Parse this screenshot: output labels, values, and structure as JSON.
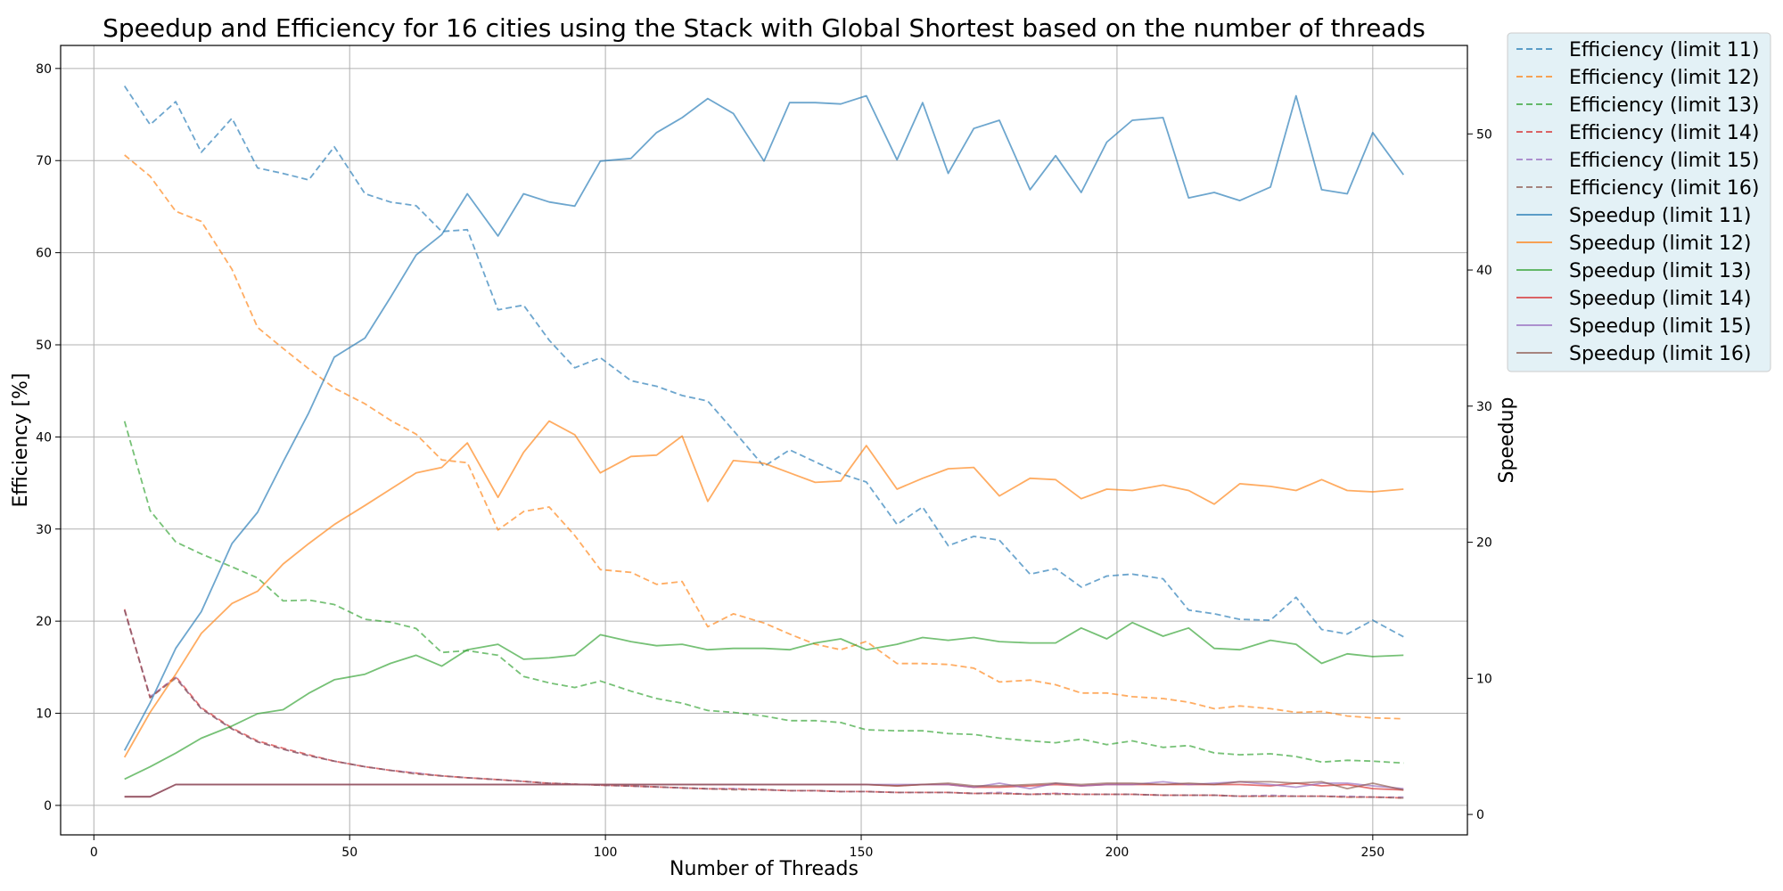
{
  "chart_data": {
    "type": "line",
    "title": "Speedup and Efficiency for 16 cities using the Stack with Global Shortest based on the number of threads",
    "xlabel": "Number of Threads",
    "ylabel_left": "Efficiency [%]",
    "ylabel_right": "Speedup",
    "xlim": [
      -6.5,
      268.5
    ],
    "ylim_left": [
      -3.2,
      82.5
    ],
    "ylim_right": [
      -1.5,
      56.5
    ],
    "xticks": [
      0,
      50,
      100,
      150,
      200,
      250
    ],
    "yticks_left": [
      0,
      10,
      20,
      30,
      40,
      50,
      60,
      70,
      80
    ],
    "yticks_right": [
      0,
      10,
      20,
      30,
      40,
      50
    ],
    "grid": true,
    "legend_position": "outside-top-right",
    "x": [
      6,
      11,
      16,
      21,
      27,
      32,
      37,
      42,
      47,
      53,
      58,
      63,
      68,
      73,
      79,
      84,
      89,
      94,
      99,
      105,
      110,
      115,
      120,
      125,
      131,
      136,
      141,
      146,
      151,
      157,
      162,
      167,
      172,
      177,
      183,
      188,
      193,
      198,
      203,
      209,
      214,
      219,
      224,
      230,
      235,
      240,
      245,
      250,
      256
    ],
    "series": [
      {
        "name": "Efficiency (limit 11)",
        "axis": "left",
        "style": "dashed",
        "color": "#1f77b4",
        "values": [
          78.1,
          73.9,
          76.4,
          70.9,
          74.6,
          69.2,
          68.6,
          67.9,
          71.5,
          66.4,
          65.5,
          65.1,
          62.3,
          62.5,
          53.8,
          54.3,
          50.5,
          47.5,
          48.6,
          46.1,
          45.5,
          44.5,
          43.9,
          40.7,
          36.8,
          38.6,
          37.3,
          36.0,
          35.1,
          30.5,
          32.4,
          28.2,
          29.2,
          28.8,
          25.1,
          25.7,
          23.7,
          24.9,
          25.1,
          24.6,
          21.2,
          20.8,
          20.2,
          20.1,
          22.6,
          19.1,
          18.6,
          20.1,
          18.3
        ]
      },
      {
        "name": "Efficiency (limit 12)",
        "axis": "left",
        "style": "dashed",
        "color": "#ff7f0e",
        "values": [
          70.6,
          68.3,
          64.5,
          63.4,
          58.2,
          51.9,
          49.6,
          47.4,
          45.3,
          43.6,
          41.8,
          40.3,
          37.5,
          37.2,
          29.9,
          31.9,
          32.4,
          29.3,
          25.6,
          25.3,
          24.0,
          24.3,
          19.4,
          20.8,
          19.8,
          18.6,
          17.5,
          16.9,
          17.8,
          15.4,
          15.4,
          15.3,
          14.9,
          13.4,
          13.6,
          13.1,
          12.2,
          12.2,
          11.8,
          11.6,
          11.2,
          10.5,
          10.8,
          10.5,
          10.1,
          10.2,
          9.7,
          9.5,
          9.4
        ]
      },
      {
        "name": "Efficiency (limit 13)",
        "axis": "left",
        "style": "dashed",
        "color": "#2ca02c",
        "values": [
          41.7,
          32.0,
          28.6,
          27.3,
          25.9,
          24.7,
          22.2,
          22.3,
          21.8,
          20.2,
          19.9,
          19.2,
          16.6,
          16.8,
          16.3,
          14.0,
          13.3,
          12.8,
          13.5,
          12.4,
          11.6,
          11.1,
          10.3,
          10.1,
          9.7,
          9.2,
          9.2,
          9.0,
          8.2,
          8.1,
          8.1,
          7.8,
          7.7,
          7.3,
          7.0,
          6.8,
          7.2,
          6.6,
          7.0,
          6.3,
          6.5,
          5.7,
          5.5,
          5.6,
          5.3,
          4.7,
          4.9,
          4.8,
          4.6
        ]
      },
      {
        "name": "Efficiency (limit 14)",
        "axis": "left",
        "style": "dashed",
        "color": "#d62728",
        "values": [
          21.3,
          11.7,
          14.0,
          10.6,
          8.4,
          7.0,
          6.2,
          5.5,
          4.8,
          4.2,
          3.8,
          3.5,
          3.2,
          3.0,
          2.8,
          2.6,
          2.4,
          2.3,
          2.2,
          2.1,
          2.0,
          1.9,
          1.8,
          1.8,
          1.7,
          1.6,
          1.6,
          1.5,
          1.5,
          1.4,
          1.4,
          1.4,
          1.3,
          1.3,
          1.2,
          1.3,
          1.2,
          1.2,
          1.2,
          1.1,
          1.1,
          1.1,
          1.0,
          1.0,
          1.0,
          1.0,
          0.9,
          0.9,
          0.8
        ]
      },
      {
        "name": "Efficiency (limit 15)",
        "axis": "left",
        "style": "dashed",
        "color": "#9467bd",
        "values": [
          21.2,
          11.8,
          13.9,
          10.5,
          8.3,
          6.9,
          6.1,
          5.4,
          4.8,
          4.2,
          3.8,
          3.5,
          3.2,
          3.0,
          2.8,
          2.6,
          2.4,
          2.3,
          2.2,
          2.1,
          2.0,
          1.9,
          1.8,
          1.8,
          1.7,
          1.6,
          1.6,
          1.5,
          1.5,
          1.4,
          1.4,
          1.4,
          1.3,
          1.4,
          1.2,
          1.3,
          1.2,
          1.2,
          1.2,
          1.1,
          1.1,
          1.1,
          1.0,
          1.1,
          1.0,
          1.0,
          1.0,
          0.9,
          0.9
        ]
      },
      {
        "name": "Efficiency (limit 16)",
        "axis": "left",
        "style": "dashed",
        "color": "#8c564b",
        "values": [
          21.2,
          11.7,
          13.8,
          10.5,
          8.3,
          6.9,
          6.1,
          5.4,
          4.8,
          4.2,
          3.8,
          3.4,
          3.2,
          3.0,
          2.8,
          2.6,
          2.4,
          2.3,
          2.2,
          2.1,
          2.0,
          1.9,
          1.8,
          1.7,
          1.7,
          1.6,
          1.6,
          1.5,
          1.5,
          1.4,
          1.4,
          1.4,
          1.3,
          1.3,
          1.2,
          1.2,
          1.2,
          1.2,
          1.2,
          1.1,
          1.1,
          1.1,
          1.0,
          1.0,
          1.0,
          1.0,
          0.9,
          0.9,
          0.8
        ]
      },
      {
        "name": "Speedup (limit 11)",
        "axis": "right",
        "style": "solid",
        "color": "#1f77b4",
        "values": [
          4.7,
          8.2,
          12.2,
          14.9,
          19.9,
          22.2,
          25.9,
          29.5,
          33.6,
          35.0,
          38.0,
          41.1,
          42.6,
          45.6,
          42.5,
          45.6,
          45.0,
          44.7,
          48.0,
          48.2,
          50.1,
          51.2,
          52.6,
          51.5,
          48.0,
          52.3,
          52.3,
          52.2,
          52.8,
          48.1,
          52.3,
          47.1,
          50.4,
          51.0,
          45.9,
          48.4,
          45.7,
          49.4,
          51.0,
          51.2,
          45.3,
          45.7,
          45.1,
          46.1,
          52.8,
          45.9,
          45.6,
          50.1,
          47.0
        ]
      },
      {
        "name": "Speedup (limit 12)",
        "axis": "right",
        "style": "solid",
        "color": "#ff7f0e",
        "values": [
          4.2,
          7.5,
          10.3,
          13.3,
          15.5,
          16.4,
          18.4,
          19.9,
          21.3,
          22.7,
          23.9,
          25.1,
          25.5,
          27.3,
          23.3,
          26.6,
          28.9,
          27.9,
          25.1,
          26.3,
          26.4,
          27.8,
          23.0,
          26.0,
          25.8,
          25.1,
          24.4,
          24.5,
          27.1,
          23.9,
          24.7,
          25.4,
          25.5,
          23.4,
          24.7,
          24.6,
          23.2,
          23.9,
          23.8,
          24.2,
          23.8,
          22.8,
          24.3,
          24.1,
          23.8,
          24.6,
          23.8,
          23.7,
          23.9
        ]
      },
      {
        "name": "Speedup (limit 13)",
        "axis": "right",
        "style": "solid",
        "color": "#2ca02c",
        "values": [
          2.6,
          3.5,
          4.5,
          5.6,
          6.5,
          7.4,
          7.7,
          8.9,
          9.9,
          10.3,
          11.1,
          11.7,
          10.9,
          12.1,
          12.5,
          11.4,
          11.5,
          11.7,
          13.2,
          12.7,
          12.4,
          12.5,
          12.1,
          12.2,
          12.2,
          12.1,
          12.6,
          12.9,
          12.1,
          12.5,
          13.0,
          12.8,
          13.0,
          12.7,
          12.6,
          12.6,
          13.7,
          12.9,
          14.1,
          13.1,
          13.7,
          12.2,
          12.1,
          12.8,
          12.5,
          11.1,
          11.8,
          11.6,
          11.7
        ]
      },
      {
        "name": "Speedup (limit 14)",
        "axis": "right",
        "style": "solid",
        "color": "#d62728",
        "values": [
          1.3,
          1.3,
          2.2,
          2.2,
          2.2,
          2.2,
          2.2,
          2.2,
          2.2,
          2.2,
          2.2,
          2.2,
          2.2,
          2.2,
          2.2,
          2.2,
          2.2,
          2.2,
          2.2,
          2.2,
          2.2,
          2.2,
          2.2,
          2.2,
          2.2,
          2.2,
          2.2,
          2.2,
          2.2,
          2.1,
          2.2,
          2.2,
          2.0,
          2.0,
          2.1,
          2.2,
          2.1,
          2.2,
          2.2,
          2.2,
          2.2,
          2.2,
          2.2,
          2.1,
          2.3,
          2.1,
          2.2,
          1.9,
          1.8
        ]
      },
      {
        "name": "Speedup (limit 15)",
        "axis": "right",
        "style": "solid",
        "color": "#9467bd",
        "values": [
          1.3,
          1.3,
          2.2,
          2.2,
          2.2,
          2.2,
          2.2,
          2.2,
          2.2,
          2.2,
          2.2,
          2.2,
          2.2,
          2.2,
          2.2,
          2.2,
          2.2,
          2.2,
          2.2,
          2.2,
          2.2,
          2.2,
          2.2,
          2.2,
          2.2,
          2.2,
          2.2,
          2.2,
          2.2,
          2.2,
          2.2,
          2.2,
          2.0,
          2.3,
          1.9,
          2.3,
          2.1,
          2.2,
          2.2,
          2.4,
          2.2,
          2.3,
          2.4,
          2.2,
          2.0,
          2.3,
          2.3,
          2.1,
          1.9
        ]
      },
      {
        "name": "Speedup (limit 16)",
        "axis": "right",
        "style": "solid",
        "color": "#8c564b",
        "values": [
          1.3,
          1.3,
          2.2,
          2.2,
          2.2,
          2.2,
          2.2,
          2.2,
          2.2,
          2.2,
          2.2,
          2.2,
          2.2,
          2.2,
          2.2,
          2.2,
          2.2,
          2.2,
          2.2,
          2.2,
          2.2,
          2.2,
          2.2,
          2.2,
          2.2,
          2.2,
          2.2,
          2.2,
          2.2,
          2.1,
          2.2,
          2.3,
          2.1,
          2.1,
          2.2,
          2.3,
          2.2,
          2.3,
          2.3,
          2.2,
          2.3,
          2.2,
          2.4,
          2.4,
          2.3,
          2.4,
          1.9,
          2.3,
          1.8
        ]
      }
    ]
  }
}
